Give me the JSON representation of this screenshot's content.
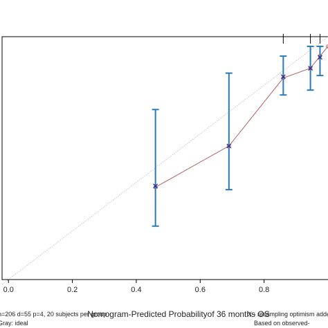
{
  "chart_data": {
    "type": "scatter",
    "xlabel": "Nomogram-Predicted Probabilityof 36 months OS",
    "ylabel": "",
    "xlim": [
      -0.02,
      1.0
    ],
    "ylim": [
      0.0,
      1.0
    ],
    "x_ticks": [
      "0.0",
      "0.2",
      "0.4",
      "0.6",
      "0.8"
    ],
    "x_tick_values": [
      0.0,
      0.2,
      0.4,
      0.6,
      0.8
    ],
    "grid": false,
    "colors": {
      "ideal": "#bbbbbb",
      "apparent": "#b06060",
      "error_bar": "#2a7ab8",
      "marker": "#2a2a9a",
      "axis": "#000000"
    },
    "ideal_line": {
      "x": [
        -0.02,
        1.0
      ],
      "y": [
        -0.02,
        1.0
      ]
    },
    "apparent": {
      "x": [
        0.46,
        0.69,
        0.86,
        0.945,
        0.975,
        1.0
      ],
      "y": [
        0.38,
        0.55,
        0.83,
        0.87,
        0.92,
        0.96
      ]
    },
    "bias_corrected": {
      "x": [
        0.46,
        0.69,
        0.86,
        0.945,
        0.975
      ],
      "y": [
        0.385,
        0.55,
        0.835,
        0.87,
        0.915
      ]
    },
    "error_bars": [
      {
        "x": 0.46,
        "lower": 0.22,
        "upper": 0.7
      },
      {
        "x": 0.69,
        "lower": 0.37,
        "upper": 0.85
      },
      {
        "x": 0.86,
        "lower": 0.76,
        "upper": 0.92
      },
      {
        "x": 0.945,
        "lower": 0.78,
        "upper": 0.96
      },
      {
        "x": 0.975,
        "lower": 0.84,
        "upper": 0.96
      }
    ],
    "rug_ticks_x": [
      0.86,
      0.945,
      0.975
    ]
  },
  "notes": {
    "left_line1": "n=206 d=55 p=4, 20 subjects per group",
    "left_line2": "Gray: ideal",
    "right_line1": "X - resampling optimism adde",
    "right_line2": "Based on observed-"
  }
}
